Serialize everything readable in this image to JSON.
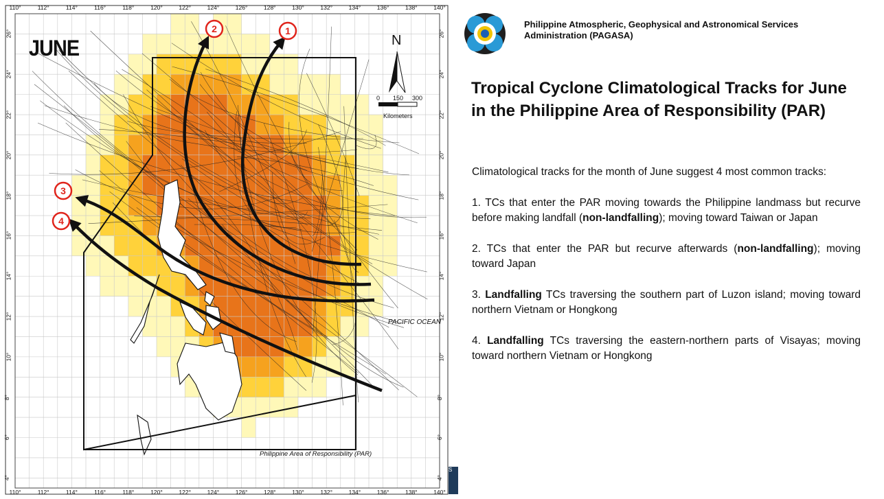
{
  "map": {
    "month": "JUNE",
    "north_label": "N",
    "scale": {
      "zero": "0",
      "mid": "150",
      "max": "300",
      "unit": "Kilometers"
    },
    "ocean_label": "PACIFIC OCEAN",
    "par_label": "Philippine Area of Responsibility (PAR)",
    "longitude_labels": [
      "110°",
      "112°",
      "114°",
      "116°",
      "118°",
      "120°",
      "122°",
      "124°",
      "126°",
      "128°",
      "130°",
      "132°",
      "134°",
      "136°",
      "138°",
      "140°"
    ],
    "latitude_labels": [
      "4°",
      "6°",
      "8°",
      "10°",
      "12°",
      "14°",
      "16°",
      "18°",
      "20°",
      "22°",
      "24°",
      "26°"
    ],
    "track_markers": [
      "1",
      "2",
      "3",
      "4"
    ],
    "colors": {
      "low": "#fff8b8",
      "mid": "#ffd23a",
      "high": "#f6a21e",
      "peak": "#e8741a",
      "marker": "#e0241b"
    },
    "corner_text": "S"
  },
  "header": {
    "agency_line1": "Philippine Atmospheric, Geophysical and Astronomical Services",
    "agency_line2": "Administration (PAGASA)"
  },
  "title": {
    "line1": "Tropical Cyclone Climatological Tracks for June",
    "line2": "in the Philippine Area of Responsibility (PAR)"
  },
  "description": {
    "intro": "Climatological tracks for the month of June suggest 4 most common tracks:",
    "items": [
      {
        "pre": "1. TCs that enter the PAR moving towards the Philippine landmass but recurve before making landfall (",
        "bold": "non-landfalling",
        "post": "); moving toward Taiwan or Japan"
      },
      {
        "pre": "2. TCs that enter the PAR but recurve afterwards (",
        "bold": "non-landfalling",
        "post": "); moving toward Japan"
      },
      {
        "pre": "3. ",
        "bold": "Landfalling",
        "post": " TCs traversing the southern part of Luzon island; moving toward northern Vietnam or Hongkong"
      },
      {
        "pre": "4. ",
        "bold": "Landfalling",
        "post": " TCs traversing the eastern-northern parts of Visayas; moving toward northern Vietnam or Hongkong"
      }
    ]
  }
}
